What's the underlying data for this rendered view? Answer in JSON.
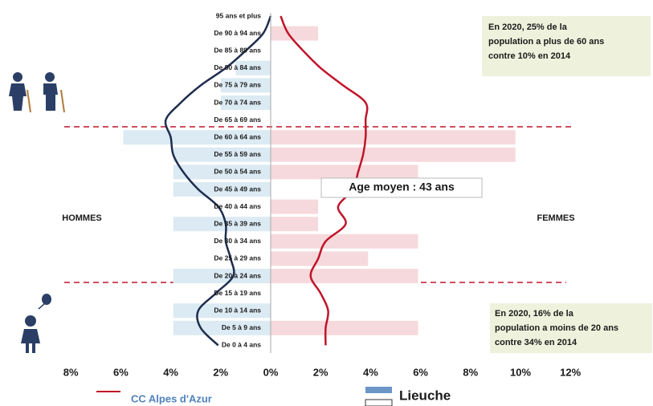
{
  "chart_data": {
    "type": "pyramid",
    "categories": [
      "95 ans et plus",
      "De 90 à 94 ans",
      "De 85 à 89 ans",
      "De 80 à 84 ans",
      "De 75 à 79 ans",
      "De 70 à 74 ans",
      "De 65 à 69 ans",
      "De 60 à 64 ans",
      "De 55 à 59 ans",
      "De 50 à 54 ans",
      "De 45 à 49 ans",
      "De 40 à 44 ans",
      "De 35 à 39 ans",
      "De 30 à 34 ans",
      "De 25 à 29 ans",
      "De 20 à 24 ans",
      "De 15 à 19 ans",
      "De 10 à 14 ans",
      "De 5 à 9 ans",
      "De 0 à 4 ans"
    ],
    "bars": {
      "name": "Lieuche",
      "color": "#6c96c8",
      "men_color": "#dbeaf3",
      "women_color": "#f6d9dc",
      "men": [
        0,
        0,
        0,
        1.4,
        2,
        2,
        0,
        5.9,
        3.9,
        3.9,
        3.9,
        0,
        3.9,
        0,
        0,
        3.9,
        0,
        3.9,
        3.9,
        0
      ],
      "women": [
        0,
        1.9,
        0,
        0,
        0,
        0,
        0,
        9.8,
        9.8,
        5.9,
        0,
        1.9,
        1.9,
        5.9,
        3.9,
        5.9,
        0,
        0,
        5.9,
        0
      ]
    },
    "lines": {
      "name": "CC Alpes d'Azur",
      "color": "#c0152a",
      "men_color": "#1f2d4e",
      "women_color": "#c0152a",
      "men": [
        0,
        0.3,
        1.0,
        1.8,
        2.8,
        3.6,
        4.2,
        4.0,
        3.9,
        3.5,
        2.9,
        2.1,
        1.8,
        1.8,
        1.6,
        1.5,
        2.2,
        2.9,
        2.8,
        2.1
      ],
      "women": [
        0.4,
        0.7,
        1.3,
        2.0,
        2.9,
        3.8,
        3.8,
        3.8,
        3.7,
        3.5,
        3.3,
        2.7,
        3.0,
        2.2,
        1.9,
        1.6,
        2.0,
        2.3,
        2.2,
        2.2
      ]
    },
    "xlim": [
      -8,
      12
    ],
    "xticks": [
      {
        "value": -8,
        "label": "8%"
      },
      {
        "value": -6,
        "label": "6%"
      },
      {
        "value": -4,
        "label": "4%"
      },
      {
        "value": -2,
        "label": "2%"
      },
      {
        "value": 0,
        "label": "0%"
      },
      {
        "value": 2,
        "label": "2%"
      },
      {
        "value": 4,
        "label": "4%"
      },
      {
        "value": 6,
        "label": "6%"
      },
      {
        "value": 8,
        "label": "8%"
      },
      {
        "value": 10,
        "label": "10%"
      },
      {
        "value": 12,
        "label": "12%"
      }
    ],
    "left_label": "HOMMES",
    "right_label": "FEMMES",
    "mean_age": "Age moyen : 43 ans",
    "note_top": [
      "En 2020, 25% de la",
      "population a plus de 60 ans",
      "contre 10% en 2014"
    ],
    "note_bottom": [
      "En 2020, 16% de la",
      "population a moins de 20 ans",
      "contre 34% en 2014"
    ]
  }
}
